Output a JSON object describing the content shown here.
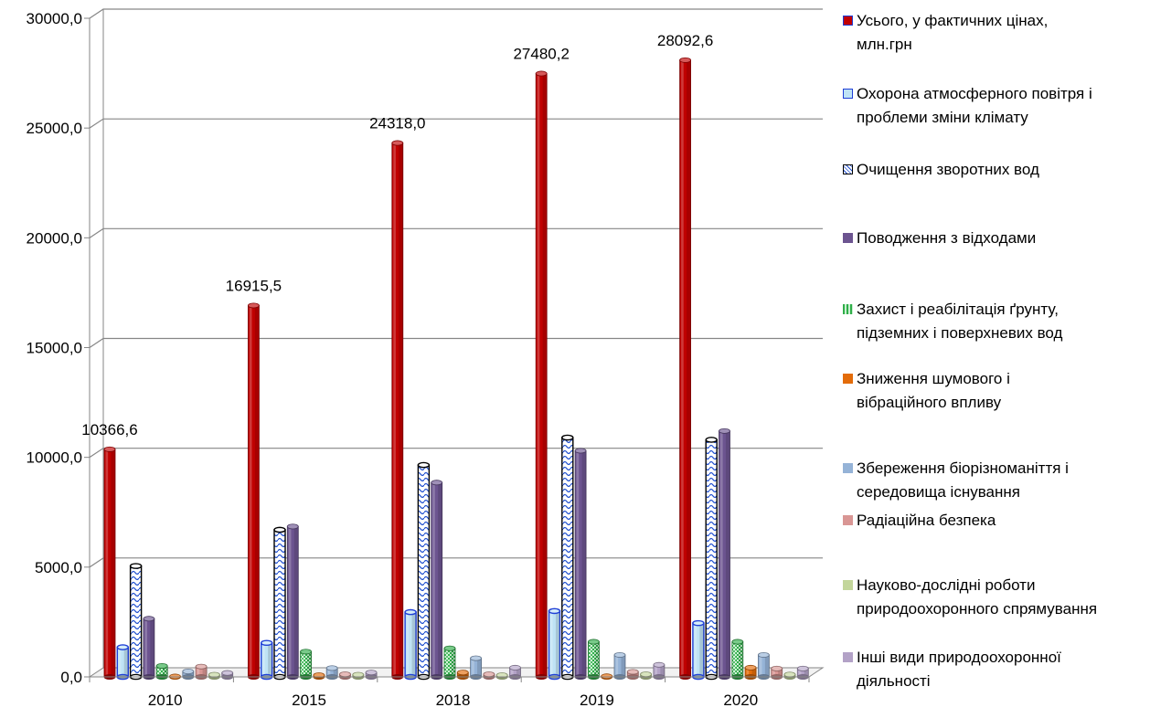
{
  "chart_data": {
    "type": "bar",
    "categories": [
      "2010",
      "2015",
      "2018",
      "2019",
      "2020"
    ],
    "ylim": [
      0,
      30000
    ],
    "yticks": [
      "0,0",
      "5000,0",
      "10000,0",
      "15000,0",
      "20000,0",
      "25000,0",
      "30000,0"
    ],
    "grid": true,
    "legend_position": "right",
    "series": [
      {
        "name": "Усього, у фактичних цінах, млн.грн",
        "color": "#c00000",
        "values": [
          10366.6,
          16915.5,
          24318.0,
          27480.2,
          28092.6
        ],
        "data_labels": [
          "10366,6",
          "16915,5",
          "24318,0",
          "27480,2",
          "28092,6"
        ]
      },
      {
        "name": "Охорона атмосферного  повітря і проблеми зміни клімату",
        "color": "#bfe3f5",
        "values": [
          1350,
          1550,
          2950,
          3000,
          2450
        ]
      },
      {
        "name": "Очищення зворотних вод",
        "color": "#ffffff",
        "values": [
          5050,
          6700,
          9650,
          10900,
          10800
        ]
      },
      {
        "name": "Поводження з відходами",
        "color": "#6c5490",
        "values": [
          2650,
          6850,
          8850,
          10300,
          11200
        ]
      },
      {
        "name": "Захист і реабілітація ґрунту, підземних і поверхневих вод",
        "color": "#2fae49",
        "values": [
          500,
          1150,
          1300,
          1600,
          1600
        ]
      },
      {
        "name": "Зниження шумового і вібраційного впливу",
        "color": "#e36c0a",
        "values": [
          20,
          80,
          200,
          30,
          420
        ]
      },
      {
        "name": "Збереження біорізноманіття і середовища існування",
        "color": "#95b3d7",
        "values": [
          250,
          400,
          850,
          1000,
          1000
        ]
      },
      {
        "name": "Радіаційна безпека",
        "color": "#d99694",
        "values": [
          470,
          120,
          120,
          230,
          380
        ]
      },
      {
        "name": "Науково-дослідні роботи природоохоронного спрямування",
        "color": "#c3d69b",
        "values": [
          100,
          100,
          80,
          120,
          110
        ]
      },
      {
        "name": "Інші види природоохоронної діяльності",
        "color": "#b3a2c7",
        "values": [
          180,
          200,
          420,
          550,
          380
        ]
      }
    ]
  }
}
